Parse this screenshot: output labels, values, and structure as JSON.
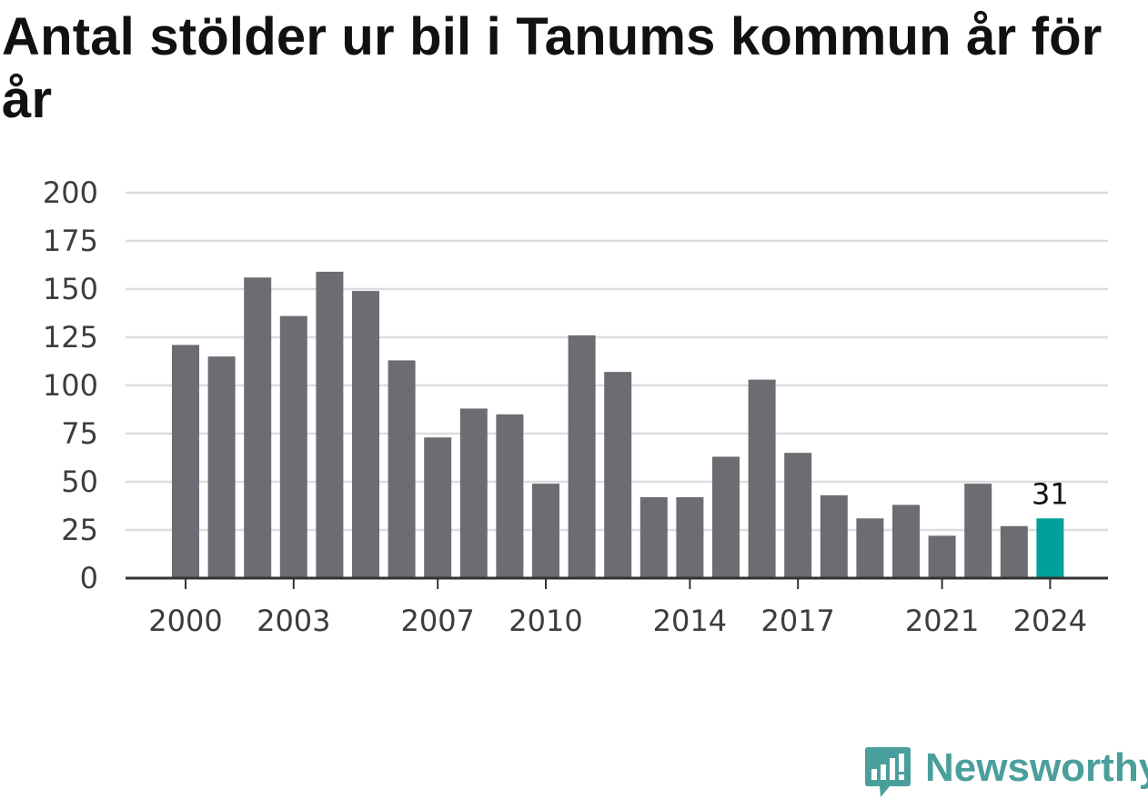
{
  "title": "Antal stölder ur bil i Tanums kommun år för år",
  "brand": {
    "name": "Newsworthy"
  },
  "chart_data": {
    "type": "bar",
    "categories": [
      "2000",
      "2001",
      "2002",
      "2003",
      "2004",
      "2005",
      "2006",
      "2007",
      "2008",
      "2009",
      "2010",
      "2011",
      "2012",
      "2013",
      "2014",
      "2015",
      "2016",
      "2017",
      "2018",
      "2019",
      "2020",
      "2021",
      "2022",
      "2023",
      "2024"
    ],
    "values": [
      121,
      115,
      156,
      136,
      159,
      149,
      113,
      73,
      88,
      85,
      49,
      126,
      107,
      42,
      42,
      63,
      103,
      65,
      43,
      31,
      38,
      22,
      49,
      27,
      31
    ],
    "x_tick_labels": [
      "2000",
      "2003",
      "2007",
      "2010",
      "2014",
      "2017",
      "2021",
      "2024"
    ],
    "y_ticks": [
      0,
      25,
      50,
      75,
      100,
      125,
      150,
      175,
      200
    ],
    "ylim": [
      0,
      200
    ],
    "highlight": {
      "category": "2024",
      "label": "31"
    },
    "colors": {
      "bar": "#6d6c72",
      "highlight": "#00a19a",
      "grid": "#dddddd",
      "axis": "#333333"
    },
    "grid": true
  }
}
